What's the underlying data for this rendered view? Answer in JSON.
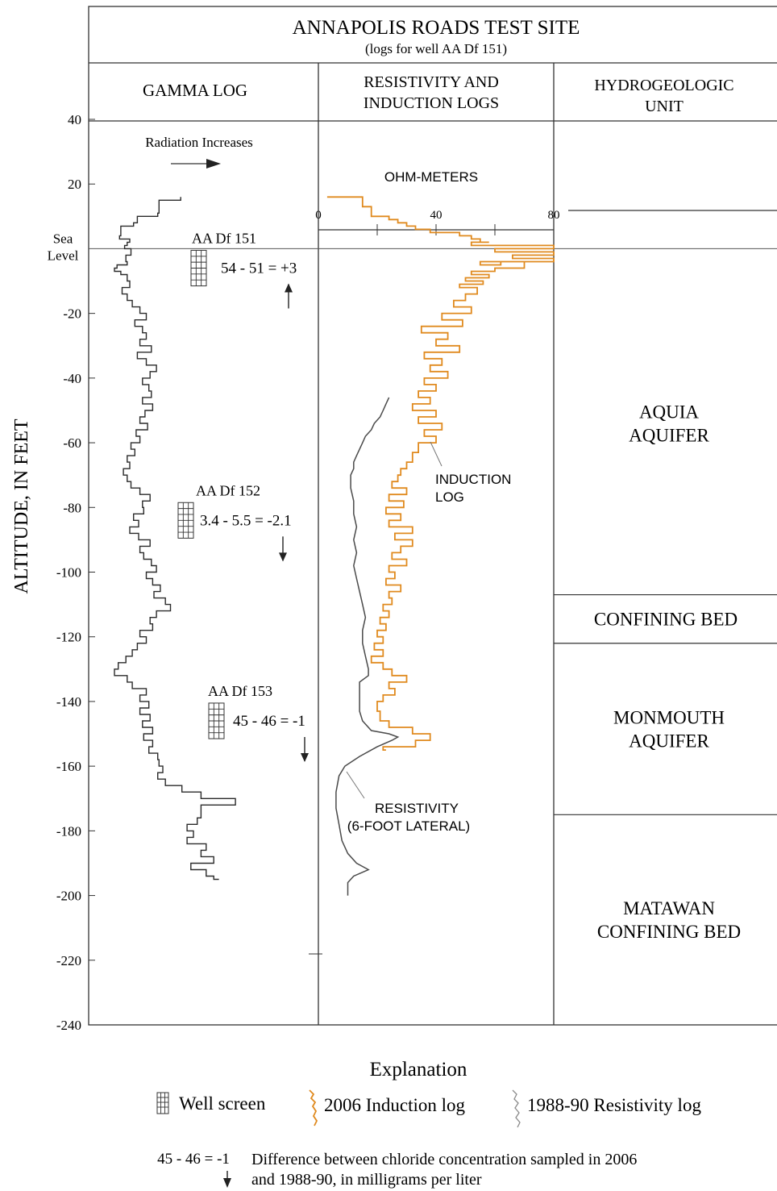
{
  "chart_data": {
    "type": "line",
    "title": "ANNAPOLIS ROADS TEST SITE",
    "subtitle": "(logs for well AA Df 151)",
    "ylabel": "ALTITUDE, IN FEET",
    "ylim": [
      -240,
      40
    ],
    "y_ticks": [
      40,
      20,
      -20,
      -40,
      -60,
      -80,
      -100,
      -120,
      -140,
      -160,
      -180,
      -200,
      -220,
      -240
    ],
    "sea_level_label": [
      "Sea",
      "Level"
    ],
    "panels": {
      "gamma": "GAMMA LOG",
      "resistivity": [
        "RESISTIVITY AND",
        "INDUCTION LOGS"
      ],
      "units": [
        "HYDROGEOLOGIC",
        "UNIT"
      ]
    },
    "gamma_note": "Radiation Increases",
    "resistivity_axis": {
      "label": "OHM-METERS",
      "ticks": [
        0,
        40,
        80
      ],
      "minor_ticks": [
        20,
        60
      ],
      "range": [
        0,
        80
      ]
    },
    "hydrogeologic_units": [
      {
        "lines": [
          "AQUIA",
          "AQUIFER"
        ],
        "top": 40,
        "bottom": -107
      },
      {
        "lines": [
          "CONFINING BED"
        ],
        "top": -107,
        "bottom": -122
      },
      {
        "lines": [
          "MONMOUTH",
          "AQUIFER"
        ],
        "top": -122,
        "bottom": -175
      },
      {
        "lines": [
          "MATAWAN",
          "CONFINING BED"
        ],
        "top": -175,
        "bottom": -240
      }
    ],
    "wells": [
      {
        "name": "AA Df 151",
        "equation": "54 - 51 = +3",
        "direction": "up",
        "screen_top": 0,
        "screen_bottom": -11
      },
      {
        "name": "AA Df 152",
        "equation": "3.4 - 5.5 = -2.1",
        "direction": "down",
        "screen_top": -78,
        "screen_bottom": -89
      },
      {
        "name": "AA Df 153",
        "equation": "45 - 46 = -1",
        "direction": "down",
        "screen_top": -140,
        "screen_bottom": -151
      }
    ],
    "series": [
      {
        "name": "2006 Induction log",
        "label": [
          "INDUCTION",
          "LOG"
        ],
        "color": "#e08a1e",
        "points": [
          [
            3,
            16
          ],
          [
            15,
            16
          ],
          [
            18,
            13
          ],
          [
            24,
            10
          ],
          [
            27,
            9
          ],
          [
            30,
            8
          ],
          [
            33,
            7
          ],
          [
            38,
            6
          ],
          [
            44,
            5
          ],
          [
            48,
            5
          ],
          [
            52,
            4
          ],
          [
            55,
            3
          ],
          [
            58,
            2
          ],
          [
            52,
            2
          ],
          [
            62,
            1
          ],
          [
            70,
            1
          ],
          [
            80,
            1
          ],
          [
            60,
            0
          ],
          [
            80,
            -1
          ],
          [
            66,
            -2
          ],
          [
            75,
            -3
          ],
          [
            80,
            -3
          ],
          [
            55,
            -4
          ],
          [
            62,
            -5
          ],
          [
            70,
            -4
          ],
          [
            60,
            -6
          ],
          [
            52,
            -7
          ],
          [
            58,
            -8
          ],
          [
            50,
            -9
          ],
          [
            56,
            -10
          ],
          [
            48,
            -11
          ],
          [
            54,
            -12
          ],
          [
            50,
            -14
          ],
          [
            46,
            -16
          ],
          [
            52,
            -18
          ],
          [
            42,
            -20
          ],
          [
            49,
            -22
          ],
          [
            35,
            -24
          ],
          [
            44,
            -26
          ],
          [
            40,
            -28
          ],
          [
            48,
            -30
          ],
          [
            36,
            -32
          ],
          [
            42,
            -34
          ],
          [
            38,
            -36
          ],
          [
            44,
            -38
          ],
          [
            36,
            -40
          ],
          [
            40,
            -42
          ],
          [
            34,
            -44
          ],
          [
            38,
            -46
          ],
          [
            32,
            -48
          ],
          [
            40,
            -50
          ],
          [
            34,
            -52
          ],
          [
            42,
            -54
          ],
          [
            36,
            -56
          ],
          [
            40,
            -58
          ],
          [
            34,
            -60
          ],
          [
            32,
            -63
          ],
          [
            30,
            -66
          ],
          [
            28,
            -68
          ],
          [
            27,
            -70
          ],
          [
            25,
            -72
          ],
          [
            30,
            -74
          ],
          [
            24,
            -76
          ],
          [
            29,
            -78
          ],
          [
            23,
            -80
          ],
          [
            28,
            -82
          ],
          [
            24,
            -84
          ],
          [
            32,
            -86
          ],
          [
            26,
            -88
          ],
          [
            32,
            -90
          ],
          [
            28,
            -92
          ],
          [
            25,
            -94
          ],
          [
            30,
            -96
          ],
          [
            24,
            -98
          ],
          [
            26,
            -100
          ],
          [
            23,
            -102
          ],
          [
            28,
            -104
          ],
          [
            24,
            -106
          ],
          [
            25,
            -108
          ],
          [
            22,
            -110
          ],
          [
            24,
            -112
          ],
          [
            21,
            -114
          ],
          [
            23,
            -116
          ],
          [
            20,
            -118
          ],
          [
            22,
            -120
          ],
          [
            19,
            -122
          ],
          [
            22,
            -124
          ],
          [
            18,
            -126
          ],
          [
            22,
            -128
          ],
          [
            25,
            -130
          ],
          [
            30,
            -132
          ],
          [
            24,
            -134
          ],
          [
            26,
            -136
          ],
          [
            22,
            -138
          ],
          [
            20,
            -140
          ],
          [
            21,
            -143
          ],
          [
            24,
            -146
          ],
          [
            32,
            -148
          ],
          [
            38,
            -150
          ],
          [
            33,
            -152
          ],
          [
            22,
            -154
          ],
          [
            23,
            -155
          ]
        ]
      },
      {
        "name": "1988-90 Resistivity log",
        "label": [
          "RESISTIVITY",
          "(6-FOOT LATERAL)"
        ],
        "color": "#4a4a4a",
        "points": [
          [
            24,
            -46
          ],
          [
            23,
            -48
          ],
          [
            22,
            -50
          ],
          [
            21,
            -52
          ],
          [
            19,
            -54
          ],
          [
            18,
            -56
          ],
          [
            16,
            -58
          ],
          [
            15,
            -60
          ],
          [
            14,
            -62
          ],
          [
            13,
            -64
          ],
          [
            12,
            -66
          ],
          [
            12,
            -68
          ],
          [
            11,
            -70
          ],
          [
            11,
            -74
          ],
          [
            12,
            -78
          ],
          [
            12,
            -82
          ],
          [
            13,
            -86
          ],
          [
            12,
            -90
          ],
          [
            13,
            -94
          ],
          [
            12,
            -98
          ],
          [
            13,
            -102
          ],
          [
            14,
            -106
          ],
          [
            15,
            -110
          ],
          [
            16,
            -114
          ],
          [
            15,
            -118
          ],
          [
            15,
            -122
          ],
          [
            16,
            -126
          ],
          [
            17,
            -130
          ],
          [
            17,
            -132
          ],
          [
            14,
            -134
          ],
          [
            14,
            -138
          ],
          [
            14,
            -140
          ],
          [
            14,
            -143
          ],
          [
            15,
            -146
          ],
          [
            18,
            -149
          ],
          [
            24,
            -150
          ],
          [
            27,
            -151
          ],
          [
            25,
            -152
          ],
          [
            20,
            -154
          ],
          [
            14,
            -157
          ],
          [
            9,
            -160
          ],
          [
            7,
            -163
          ],
          [
            6,
            -168
          ],
          [
            6,
            -173
          ],
          [
            7,
            -178
          ],
          [
            8,
            -183
          ],
          [
            10,
            -187
          ],
          [
            13,
            -190
          ],
          [
            17,
            -192
          ],
          [
            12,
            -194
          ],
          [
            10,
            -196
          ],
          [
            10,
            -198
          ],
          [
            10,
            -200
          ]
        ]
      },
      {
        "name": "Gamma log",
        "points": [
          [
            0.52,
            16
          ],
          [
            0.35,
            15
          ],
          [
            0.34,
            11
          ],
          [
            0.18,
            10
          ],
          [
            0.15,
            8
          ],
          [
            0.05,
            7
          ],
          [
            0.04,
            4
          ],
          [
            0.12,
            3
          ],
          [
            0.1,
            2
          ],
          [
            0.08,
            1
          ],
          [
            0.13,
            0
          ],
          [
            0.09,
            -2
          ],
          [
            0.1,
            -4
          ],
          [
            0.02,
            -5
          ],
          [
            0.0,
            -6
          ],
          [
            0.05,
            -7
          ],
          [
            0.1,
            -8
          ],
          [
            0.12,
            -10
          ],
          [
            0.06,
            -12
          ],
          [
            0.1,
            -14
          ],
          [
            0.14,
            -16
          ],
          [
            0.2,
            -18
          ],
          [
            0.25,
            -20
          ],
          [
            0.16,
            -22
          ],
          [
            0.22,
            -24
          ],
          [
            0.25,
            -26
          ],
          [
            0.2,
            -28
          ],
          [
            0.29,
            -30
          ],
          [
            0.18,
            -32
          ],
          [
            0.25,
            -34
          ],
          [
            0.33,
            -36
          ],
          [
            0.28,
            -38
          ],
          [
            0.22,
            -40
          ],
          [
            0.27,
            -42
          ],
          [
            0.29,
            -44
          ],
          [
            0.22,
            -46
          ],
          [
            0.3,
            -48
          ],
          [
            0.24,
            -50
          ],
          [
            0.2,
            -52
          ],
          [
            0.26,
            -54
          ],
          [
            0.17,
            -56
          ],
          [
            0.2,
            -58
          ],
          [
            0.13,
            -60
          ],
          [
            0.16,
            -62
          ],
          [
            0.1,
            -64
          ],
          [
            0.12,
            -66
          ],
          [
            0.07,
            -68
          ],
          [
            0.1,
            -70
          ],
          [
            0.13,
            -72
          ],
          [
            0.2,
            -74
          ],
          [
            0.28,
            -76
          ],
          [
            0.22,
            -78
          ],
          [
            0.23,
            -80
          ],
          [
            0.15,
            -82
          ],
          [
            0.19,
            -84
          ],
          [
            0.12,
            -86
          ],
          [
            0.19,
            -88
          ],
          [
            0.28,
            -90
          ],
          [
            0.2,
            -92
          ],
          [
            0.23,
            -94
          ],
          [
            0.29,
            -96
          ],
          [
            0.33,
            -98
          ],
          [
            0.25,
            -100
          ],
          [
            0.3,
            -102
          ],
          [
            0.36,
            -104
          ],
          [
            0.31,
            -106
          ],
          [
            0.4,
            -108
          ],
          [
            0.44,
            -110
          ],
          [
            0.33,
            -112
          ],
          [
            0.28,
            -114
          ],
          [
            0.3,
            -116
          ],
          [
            0.2,
            -118
          ],
          [
            0.25,
            -120
          ],
          [
            0.18,
            -122
          ],
          [
            0.14,
            -124
          ],
          [
            0.09,
            -126
          ],
          [
            0.03,
            -128
          ],
          [
            0.0,
            -130
          ],
          [
            0.1,
            -132
          ],
          [
            0.14,
            -134
          ],
          [
            0.25,
            -136
          ],
          [
            0.2,
            -138
          ],
          [
            0.27,
            -140
          ],
          [
            0.2,
            -142
          ],
          [
            0.28,
            -144
          ],
          [
            0.22,
            -146
          ],
          [
            0.3,
            -148
          ],
          [
            0.23,
            -150
          ],
          [
            0.3,
            -152
          ],
          [
            0.27,
            -154
          ],
          [
            0.34,
            -156
          ],
          [
            0.35,
            -158
          ],
          [
            0.38,
            -160
          ],
          [
            0.34,
            -162
          ],
          [
            0.4,
            -164
          ],
          [
            0.53,
            -166
          ],
          [
            0.68,
            -168
          ],
          [
            0.95,
            -170
          ],
          [
            0.68,
            -172
          ],
          [
            0.65,
            -176
          ],
          [
            0.57,
            -178
          ],
          [
            0.62,
            -180
          ],
          [
            0.57,
            -182
          ],
          [
            0.72,
            -184
          ],
          [
            0.68,
            -186
          ],
          [
            0.78,
            -188
          ],
          [
            0.6,
            -190
          ],
          [
            0.72,
            -192
          ],
          [
            0.78,
            -194
          ],
          [
            0.82,
            -195
          ]
        ]
      }
    ],
    "legend": {
      "title": "Explanation",
      "items": [
        "Well screen",
        "2006 Induction log",
        "1988-90 Resistivity log"
      ],
      "sample": "45 - 46 = -1",
      "description": [
        "Difference between chloride concentration sampled in 2006",
        "and 1988-90, in milligrams per liter"
      ]
    }
  }
}
